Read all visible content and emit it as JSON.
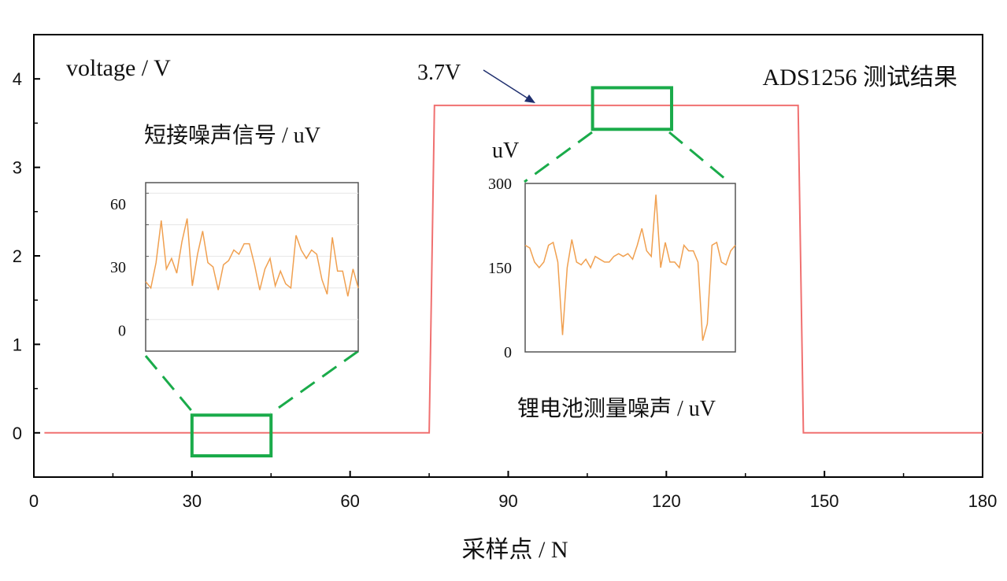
{
  "title": "ADS1256 测试结果",
  "colors": {
    "main_line": "#f07070",
    "inset_line": "#f0a050",
    "highlight_box": "#1aab4a",
    "axis": "#000000",
    "inset_frame": "#555555"
  },
  "chart_data": [
    {
      "type": "line",
      "title": "ADS1256 测试结果",
      "xlabel": "采样点 / N",
      "ylabel": "voltage / V",
      "xlim": [
        0,
        180
      ],
      "ylim": [
        -0.5,
        4.5
      ],
      "xticks": [
        0,
        30,
        60,
        90,
        120,
        150,
        180
      ],
      "yticks": [
        0,
        1,
        2,
        3,
        4
      ],
      "grid": false,
      "series": [
        {
          "x": [
            2,
            75,
            76,
            145,
            146,
            180
          ],
          "y": [
            0,
            0,
            3.7,
            3.7,
            0,
            0
          ]
        }
      ],
      "annotations": [
        {
          "text": "3.7V",
          "x": 95,
          "y": 3.7
        }
      ],
      "highlight_regions": [
        {
          "x": [
            30,
            45
          ],
          "y": [
            -0.26,
            0.2
          ]
        },
        {
          "x": [
            106,
            121
          ],
          "y": [
            3.43,
            3.9
          ]
        }
      ]
    },
    {
      "type": "line",
      "title": "短接噪声信号 / uV",
      "ylim": [
        -10,
        70
      ],
      "yticks": [
        0,
        30,
        60
      ],
      "grid": true,
      "series": [
        {
          "values": [
            23,
            20,
            32,
            52,
            29,
            34,
            27,
            42,
            53,
            21,
            36,
            47,
            32,
            30,
            19,
            31,
            33,
            38,
            36,
            41,
            41,
            31,
            19,
            29,
            34,
            21,
            28,
            22,
            20,
            45,
            38,
            34,
            38,
            36,
            24,
            17,
            44,
            28,
            28,
            16,
            29,
            20
          ]
        }
      ]
    },
    {
      "type": "line",
      "title": "锂电池测量噪声 / uV",
      "ylabel": "uV",
      "ylim": [
        0,
        300
      ],
      "yticks": [
        0,
        150,
        300
      ],
      "grid": false,
      "series": [
        {
          "values": [
            190,
            185,
            160,
            150,
            160,
            190,
            195,
            160,
            30,
            150,
            200,
            160,
            155,
            165,
            150,
            170,
            165,
            160,
            160,
            170,
            175,
            170,
            175,
            165,
            190,
            220,
            180,
            170,
            280,
            150,
            195,
            160,
            160,
            150,
            190,
            180,
            180,
            160,
            20,
            50,
            190,
            195,
            160,
            155,
            180,
            190
          ]
        }
      ]
    }
  ]
}
